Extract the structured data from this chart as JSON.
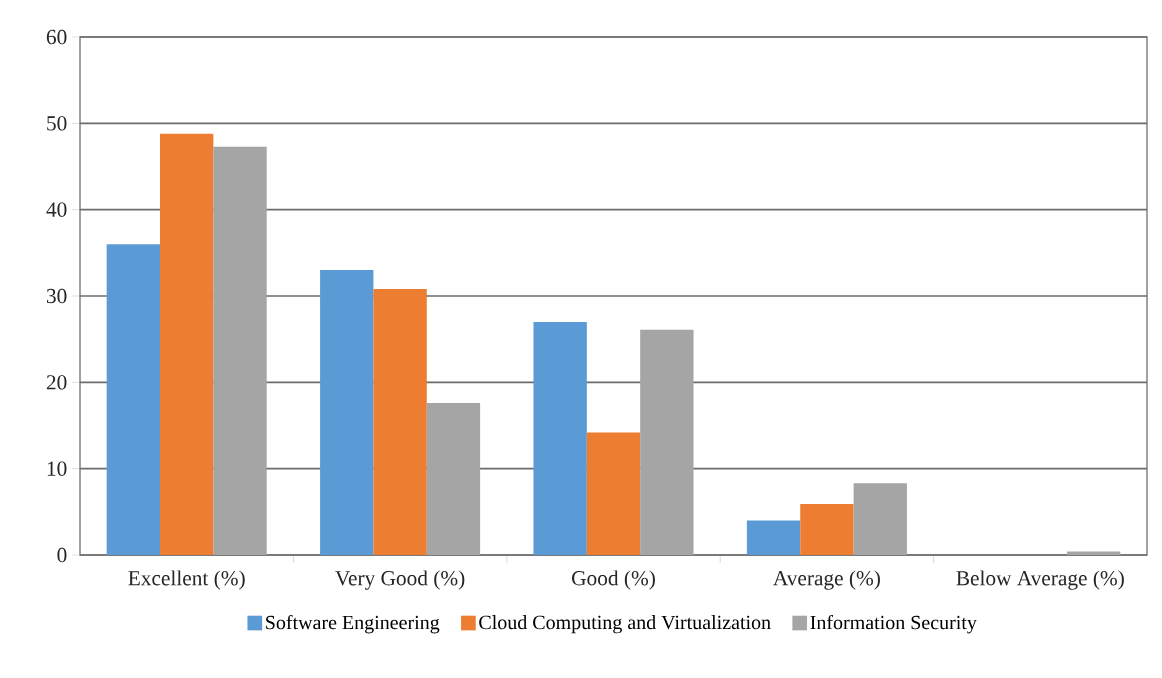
{
  "chart_data": {
    "type": "bar",
    "categories": [
      "Excellent (%)",
      "Very Good (%)",
      "Good (%)",
      "Average (%)",
      "Below Average (%)"
    ],
    "series": [
      {
        "name": "Software Engineering",
        "color": "#5b9bd5",
        "values": [
          36,
          33,
          27,
          4,
          0
        ]
      },
      {
        "name": "Cloud Computing and Virtualization",
        "color": "#ed7d31",
        "values": [
          48.8,
          30.8,
          14.2,
          5.9,
          0
        ]
      },
      {
        "name": "Information Security",
        "color": "#a5a5a5",
        "values": [
          47.3,
          17.6,
          26.1,
          8.3,
          0.4
        ]
      }
    ],
    "ylim": [
      0,
      60
    ],
    "yticks": [
      0,
      10,
      20,
      30,
      40,
      50,
      60
    ],
    "grid": "y",
    "legend": "bottom"
  }
}
